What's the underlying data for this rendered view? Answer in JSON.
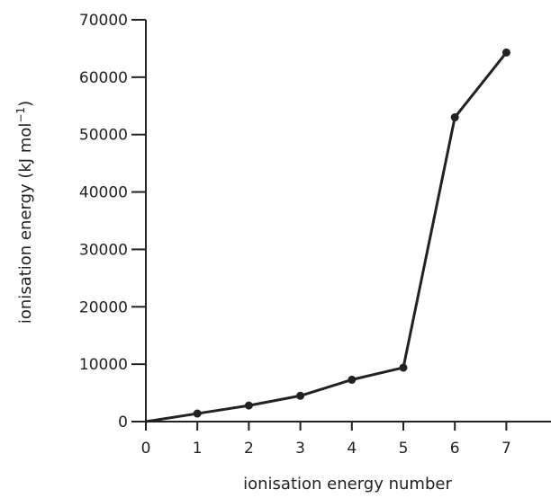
{
  "chart_data": {
    "type": "line",
    "title": "",
    "xlabel": "ionisation energy number",
    "ylabel": "ionisation energy (kJ mol",
    "ylabel_sup": "−1",
    "ylabel_close": ")",
    "xlim": [
      0,
      7
    ],
    "ylim": [
      0,
      70000
    ],
    "x_ticks": [
      "0",
      "1",
      "2",
      "3",
      "4",
      "5",
      "6",
      "7"
    ],
    "y_ticks": [
      "0",
      "10000",
      "20000",
      "30000",
      "40000",
      "50000",
      "60000",
      "70000"
    ],
    "grid": false,
    "series": [
      {
        "x": [
          0,
          1,
          2,
          3,
          4,
          5,
          6,
          7
        ],
        "y": [
          0,
          1400,
          2800,
          4500,
          7300,
          9400,
          53000,
          64300
        ]
      }
    ]
  }
}
